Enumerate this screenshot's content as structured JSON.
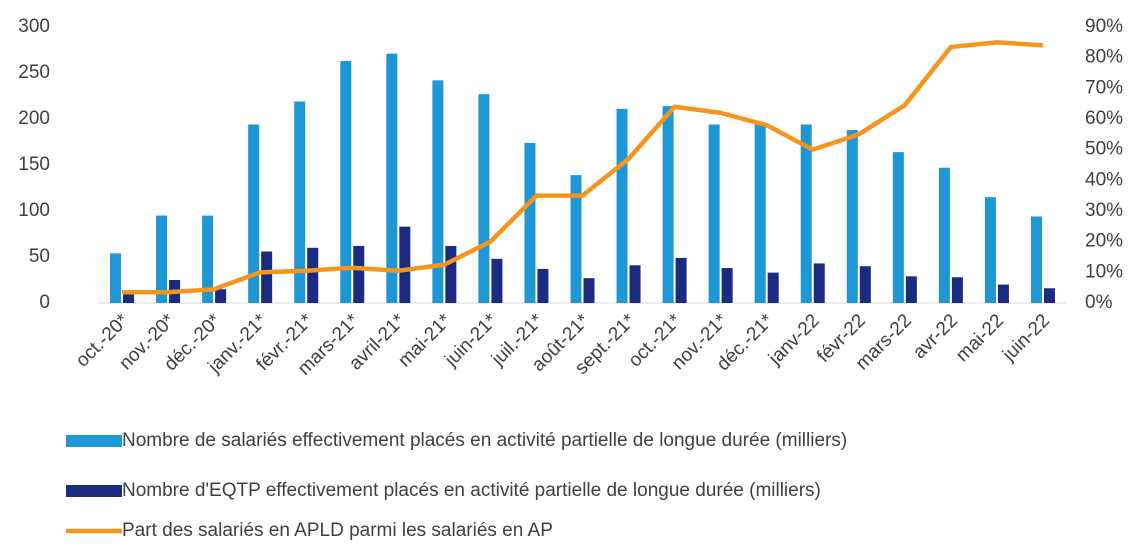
{
  "chart_data": {
    "type": "bar_line",
    "categories": [
      "oct.-20*",
      "nov.-20*",
      "déc.-20*",
      "janv.-21*",
      "févr.-21*",
      "mars-21*",
      "avril-21*",
      "mai-21*",
      "juin-21*",
      "juil.-21*",
      "août-21*",
      "sept.-21*",
      "oct.-21*",
      "nov.-21*",
      "déc.-21*",
      "janv-22",
      "févr-22",
      "mars-22",
      "avr-22",
      "mai-22",
      "juin-22"
    ],
    "series": [
      {
        "name": "Nombre de salariés effectivement placés en activité partielle de longue durée (milliers)",
        "color": "#1f97d5",
        "type": "bar",
        "values": [
          54,
          95,
          95,
          194,
          219,
          263,
          271,
          242,
          227,
          174,
          139,
          211,
          214,
          194,
          195,
          194,
          188,
          164,
          147,
          115,
          94
        ]
      },
      {
        "name": "Nombre d'EQTP effectivement placés en activité partielle de longue durée (milliers)",
        "color": "#1c2a80",
        "type": "bar",
        "values": [
          10,
          25,
          15,
          56,
          60,
          62,
          83,
          62,
          48,
          37,
          27,
          41,
          49,
          38,
          33,
          43,
          40,
          29,
          28,
          20,
          16
        ]
      },
      {
        "name": "Part des salariés en APLD parmi les salariés en AP",
        "color": "#f7941d",
        "type": "line",
        "axis": "y2",
        "values": [
          3.5,
          3.5,
          4.5,
          10,
          10.5,
          11.5,
          10.5,
          12.5,
          20,
          35,
          35,
          47,
          64,
          62,
          58,
          50,
          55,
          64.5,
          83.5,
          85,
          84
        ]
      }
    ],
    "ylim": [
      0,
      300
    ],
    "yticks": [
      0,
      50,
      100,
      150,
      200,
      250,
      300
    ],
    "y2lim": [
      0,
      90
    ],
    "y2ticks": [
      {
        "value": 0,
        "label": "0%"
      },
      {
        "value": 10,
        "label": "10%"
      },
      {
        "value": 20,
        "label": "20%"
      },
      {
        "value": 30,
        "label": "30%"
      },
      {
        "value": 40,
        "label": "40%"
      },
      {
        "value": 50,
        "label": "50%"
      },
      {
        "value": 60,
        "label": "60%"
      },
      {
        "value": 70,
        "label": "70%"
      },
      {
        "value": 80,
        "label": "80%"
      },
      {
        "value": 90,
        "label": "90%"
      }
    ],
    "grid": false,
    "legend": "bottom"
  }
}
